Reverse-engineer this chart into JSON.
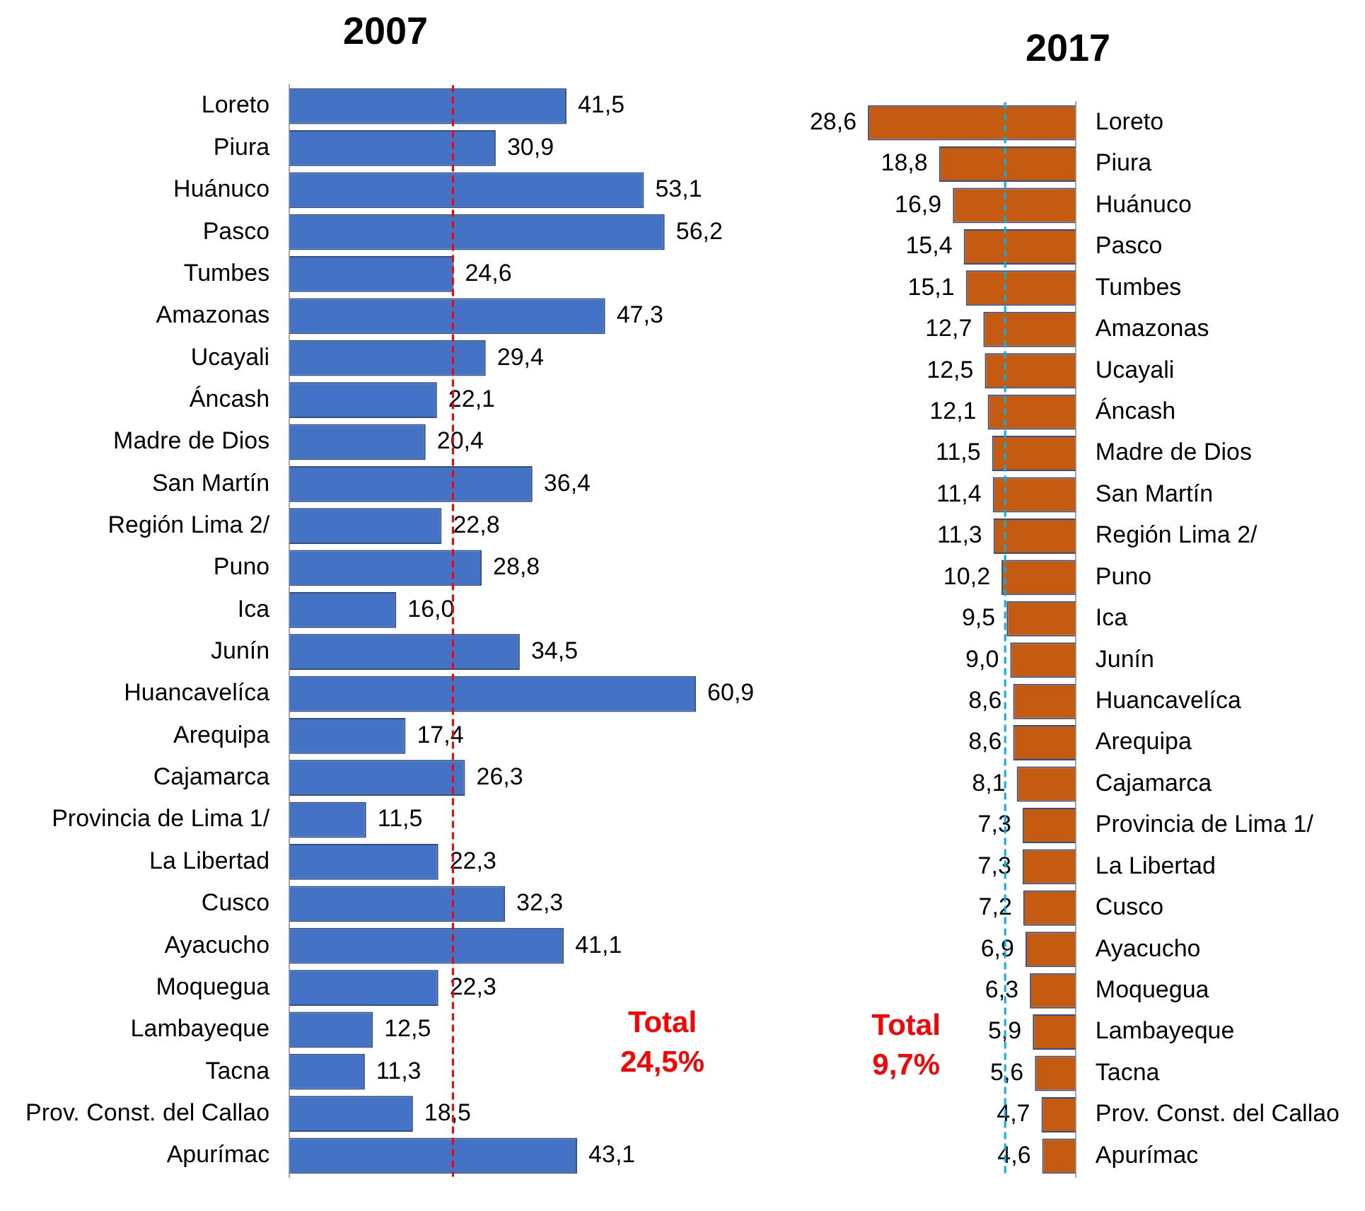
{
  "chart_data": [
    {
      "type": "bar",
      "orientation": "horizontal",
      "title": "2007",
      "categories": [
        "Loreto",
        "Piura",
        "Huánuco",
        "Pasco",
        "Tumbes",
        "Amazonas",
        "Ucayali",
        "Áncash",
        "Madre de Dios",
        "San Martín",
        "Región Lima 2/",
        "Puno",
        "Ica",
        "Junín",
        "Huancavelíca",
        "Arequipa",
        "Cajamarca",
        "Provincia de Lima 1/",
        "La Libertad",
        "Cusco",
        "Ayacucho",
        "Moquegua",
        "Lambayeque",
        "Tacna",
        "Prov. Const. del Callao",
        "Apurímac"
      ],
      "values": [
        41.5,
        30.9,
        53.1,
        56.2,
        24.6,
        47.3,
        29.4,
        22.1,
        20.4,
        36.4,
        22.8,
        28.8,
        16.0,
        34.5,
        60.9,
        17.4,
        26.3,
        11.5,
        22.3,
        32.3,
        41.1,
        22.3,
        12.5,
        11.3,
        18.5,
        43.1
      ],
      "value_labels": [
        "41,5",
        "30,9",
        "53,1",
        "56,2",
        "24,6",
        "47,3",
        "29,4",
        "22,1",
        "20,4",
        "36,4",
        "22,8",
        "28,8",
        "16,0",
        "34,5",
        "60,9",
        "17,4",
        "26,3",
        "11,5",
        "22,3",
        "32,3",
        "41,1",
        "22,3",
        "12,5",
        "11,3",
        "18,5",
        "43,1"
      ],
      "color": "#4472c4",
      "tick_labels": "y",
      "grid": false,
      "legend": false,
      "ref_lines": [
        {
          "axis": "x",
          "value": 24.5,
          "label": "Total\n24,5%",
          "color": "#ff0000",
          "line_style": "dashed"
        }
      ]
    },
    {
      "type": "bar",
      "orientation": "horizontal",
      "title": "2017",
      "categories": [
        "Loreto",
        "Piura",
        "Huánuco",
        "Pasco",
        "Tumbes",
        "Amazonas",
        "Ucayali",
        "Áncash",
        "Madre de Dios",
        "San Martín",
        "Región Lima 2/",
        "Puno",
        "Ica",
        "Junín",
        "Huancavelíca",
        "Arequipa",
        "Cajamarca",
        "Provincia de Lima 1/",
        "La Libertad",
        "Cusco",
        "Ayacucho",
        "Moquegua",
        "Lambayeque",
        "Tacna",
        "Prov. Const. del Callao",
        "Apurímac"
      ],
      "values": [
        28.6,
        18.8,
        16.9,
        15.4,
        15.1,
        12.7,
        12.5,
        12.1,
        11.5,
        11.4,
        11.3,
        10.2,
        9.5,
        9.0,
        8.6,
        8.6,
        8.1,
        7.3,
        7.3,
        7.2,
        6.9,
        6.3,
        5.9,
        5.6,
        4.7,
        4.6
      ],
      "value_labels": [
        "28,6",
        "18,8",
        "16,9",
        "15,4",
        "15,1",
        "12,7",
        "12,5",
        "12,1",
        "11,5",
        "11,4",
        "11,3",
        "10,2",
        "9,5",
        "9,0",
        "8,6",
        "8,6",
        "8,1",
        "7,3",
        "7,3",
        "7,2",
        "6,9",
        "6,3",
        "5,9",
        "5,6",
        "4,7",
        "4,6"
      ],
      "color": "#c55a11",
      "tick_labels": "y",
      "grid": false,
      "legend": false,
      "ref_lines": [
        {
          "axis": "x",
          "value": 9.7,
          "label": "Total\n9,7%",
          "color": "#00b0f0",
          "line_style": "dashed"
        }
      ]
    }
  ]
}
